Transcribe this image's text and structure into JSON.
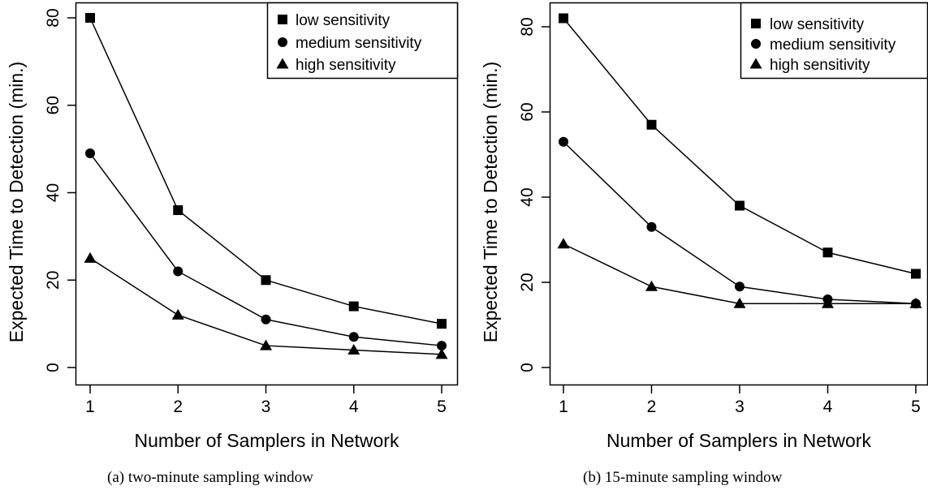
{
  "chart_data": [
    {
      "type": "line",
      "caption": "(a)  two-minute sampling window",
      "xlabel": "Number of Samplers in Network",
      "ylabel": "Expected Time to Detection (min.)",
      "x": [
        1,
        2,
        3,
        4,
        5
      ],
      "xlim": [
        1,
        5
      ],
      "ylim": [
        0,
        80
      ],
      "xticks": [
        "1",
        "2",
        "3",
        "4",
        "5"
      ],
      "yticks": [
        "0",
        "20",
        "40",
        "60",
        "80"
      ],
      "grid": false,
      "legend_position": "top-right",
      "series": [
        {
          "name": "low sensitivity",
          "marker": "square",
          "values": [
            80,
            36,
            20,
            14,
            10
          ]
        },
        {
          "name": "medium sensitivity",
          "marker": "circle",
          "values": [
            49,
            22,
            11,
            7,
            5
          ]
        },
        {
          "name": "high sensitivity",
          "marker": "triangle",
          "values": [
            25,
            12,
            5,
            4,
            3
          ]
        }
      ]
    },
    {
      "type": "line",
      "caption": "(b)  15-minute sampling window",
      "xlabel": "Number of Samplers in Network",
      "ylabel": "Expected Time to Detection (min.)",
      "x": [
        1,
        2,
        3,
        4,
        5
      ],
      "xlim": [
        1,
        5
      ],
      "ylim": [
        0,
        80
      ],
      "xticks": [
        "1",
        "2",
        "3",
        "4",
        "5"
      ],
      "yticks": [
        "0",
        "20",
        "40",
        "60",
        "80"
      ],
      "grid": false,
      "legend_position": "top-right",
      "series": [
        {
          "name": "low sensitivity",
          "marker": "square",
          "values": [
            82,
            57,
            38,
            27,
            22
          ]
        },
        {
          "name": "medium sensitivity",
          "marker": "circle",
          "values": [
            53,
            33,
            19,
            16,
            15
          ]
        },
        {
          "name": "high sensitivity",
          "marker": "triangle",
          "values": [
            29,
            19,
            15,
            15,
            15
          ]
        }
      ]
    }
  ]
}
